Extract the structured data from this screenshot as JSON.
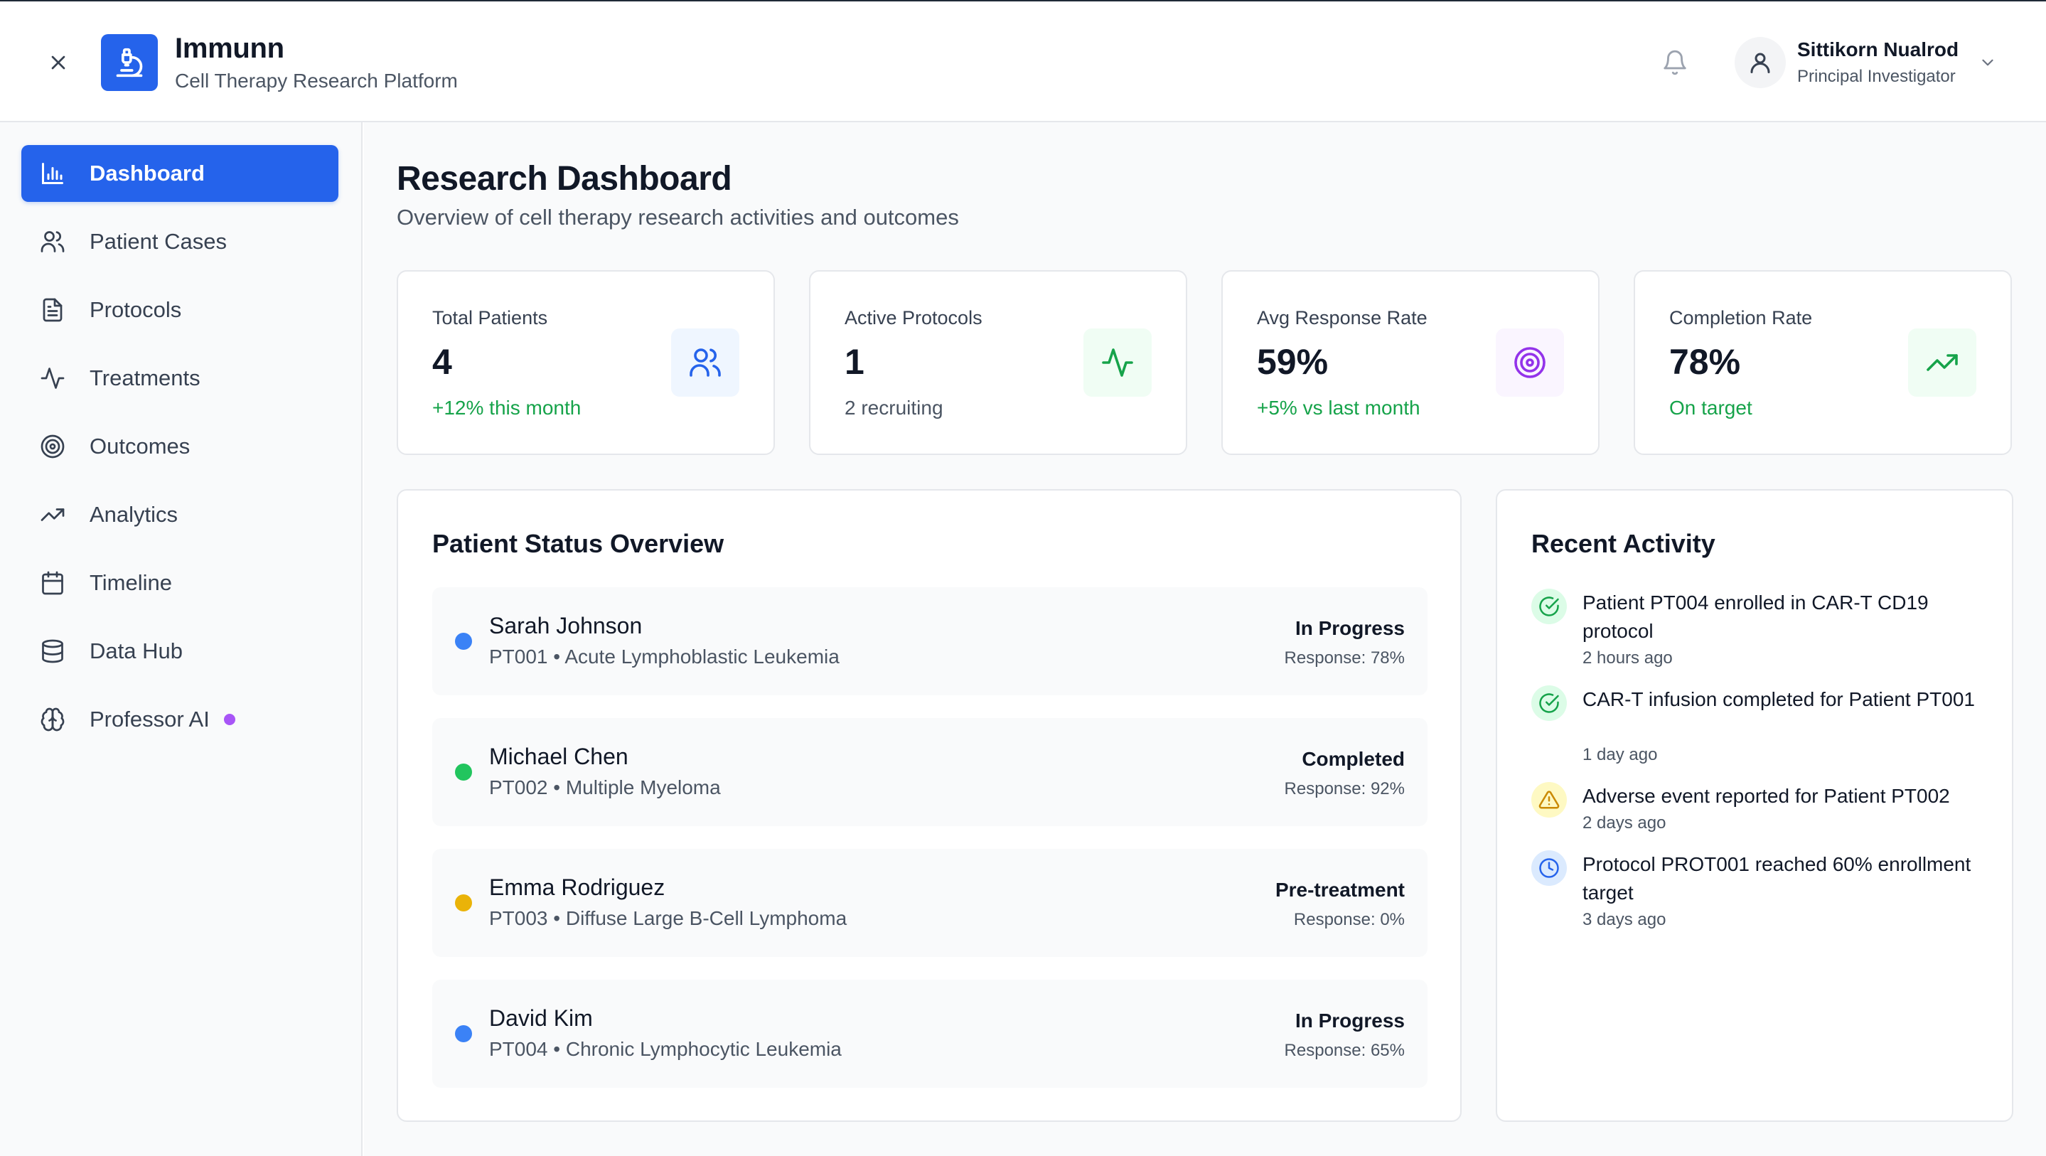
{
  "header": {
    "app_title": "Immunn",
    "app_subtitle": "Cell Therapy Research Platform",
    "close_icon": "close-icon",
    "logo_icon": "microscope-icon",
    "bell_icon": "bell-icon",
    "user": {
      "name": "Sittikorn Nualrod",
      "role": "Principal Investigator",
      "avatar_icon": "user-icon"
    }
  },
  "sidebar": {
    "items": [
      {
        "label": "Dashboard",
        "icon": "bar-chart-icon",
        "active": true
      },
      {
        "label": "Patient Cases",
        "icon": "users-icon",
        "active": false
      },
      {
        "label": "Protocols",
        "icon": "document-icon",
        "active": false
      },
      {
        "label": "Treatments",
        "icon": "activity-icon",
        "active": false
      },
      {
        "label": "Outcomes",
        "icon": "target-icon",
        "active": false
      },
      {
        "label": "Analytics",
        "icon": "trending-up-icon",
        "active": false
      },
      {
        "label": "Timeline",
        "icon": "calendar-icon",
        "active": false
      },
      {
        "label": "Data Hub",
        "icon": "database-icon",
        "active": false
      },
      {
        "label": "Professor AI",
        "icon": "brain-icon",
        "active": false,
        "indicator": true
      }
    ]
  },
  "main": {
    "title": "Research Dashboard",
    "subtitle": "Overview of cell therapy research activities and outcomes",
    "stats": [
      {
        "label": "Total Patients",
        "value": "4",
        "note": "+12% this month",
        "note_color": "#16a34a",
        "icon": "users-icon",
        "icon_bg": "#eff6ff",
        "icon_color": "#2563eb"
      },
      {
        "label": "Active Protocols",
        "value": "1",
        "note": "2 recruiting",
        "note_color": "#4b5563",
        "icon": "activity-icon",
        "icon_bg": "#f0fdf4",
        "icon_color": "#16a34a"
      },
      {
        "label": "Avg Response Rate",
        "value": "59%",
        "note": "+5% vs last month",
        "note_color": "#16a34a",
        "icon": "target-icon",
        "icon_bg": "#faf5ff",
        "icon_color": "#9333ea"
      },
      {
        "label": "Completion Rate",
        "value": "78%",
        "note": "On target",
        "note_color": "#16a34a",
        "icon": "trending-up-icon",
        "icon_bg": "#f0fdf4",
        "icon_color": "#16a34a"
      }
    ],
    "patient_overview": {
      "title": "Patient Status Overview",
      "patients": [
        {
          "name": "Sarah Johnson",
          "meta": "PT001 • Acute Lymphoblastic Leukemia",
          "status": "In Progress",
          "response": "Response: 78%",
          "dot_color": "#3b82f6"
        },
        {
          "name": "Michael Chen",
          "meta": "PT002 • Multiple Myeloma",
          "status": "Completed",
          "response": "Response: 92%",
          "dot_color": "#22c55e"
        },
        {
          "name": "Emma Rodriguez",
          "meta": "PT003 • Diffuse Large B-Cell Lymphoma",
          "status": "Pre-treatment",
          "response": "Response: 0%",
          "dot_color": "#eab308"
        },
        {
          "name": "David Kim",
          "meta": "PT004 • Chronic Lymphocytic Leukemia",
          "status": "In Progress",
          "response": "Response: 65%",
          "dot_color": "#3b82f6"
        }
      ]
    },
    "recent_activity": {
      "title": "Recent Activity",
      "items": [
        {
          "text": "Patient PT004 enrolled in CAR-T CD19 protocol",
          "time": "2 hours ago",
          "icon": "check-circle-icon",
          "icon_bg": "#dcfce7",
          "icon_color": "#16a34a"
        },
        {
          "text": "CAR-T infusion completed for Patient PT001",
          "time": "1 day ago",
          "icon": "check-circle-icon",
          "icon_bg": "#dcfce7",
          "icon_color": "#16a34a"
        },
        {
          "text": "Adverse event reported for Patient PT002",
          "time": "2 days ago",
          "icon": "warning-icon",
          "icon_bg": "#fef9c3",
          "icon_color": "#ca8a04"
        },
        {
          "text": "Protocol PROT001 reached 60% enrollment target",
          "time": "3 days ago",
          "icon": "clock-icon",
          "icon_bg": "#dbeafe",
          "icon_color": "#2563eb"
        }
      ]
    }
  }
}
